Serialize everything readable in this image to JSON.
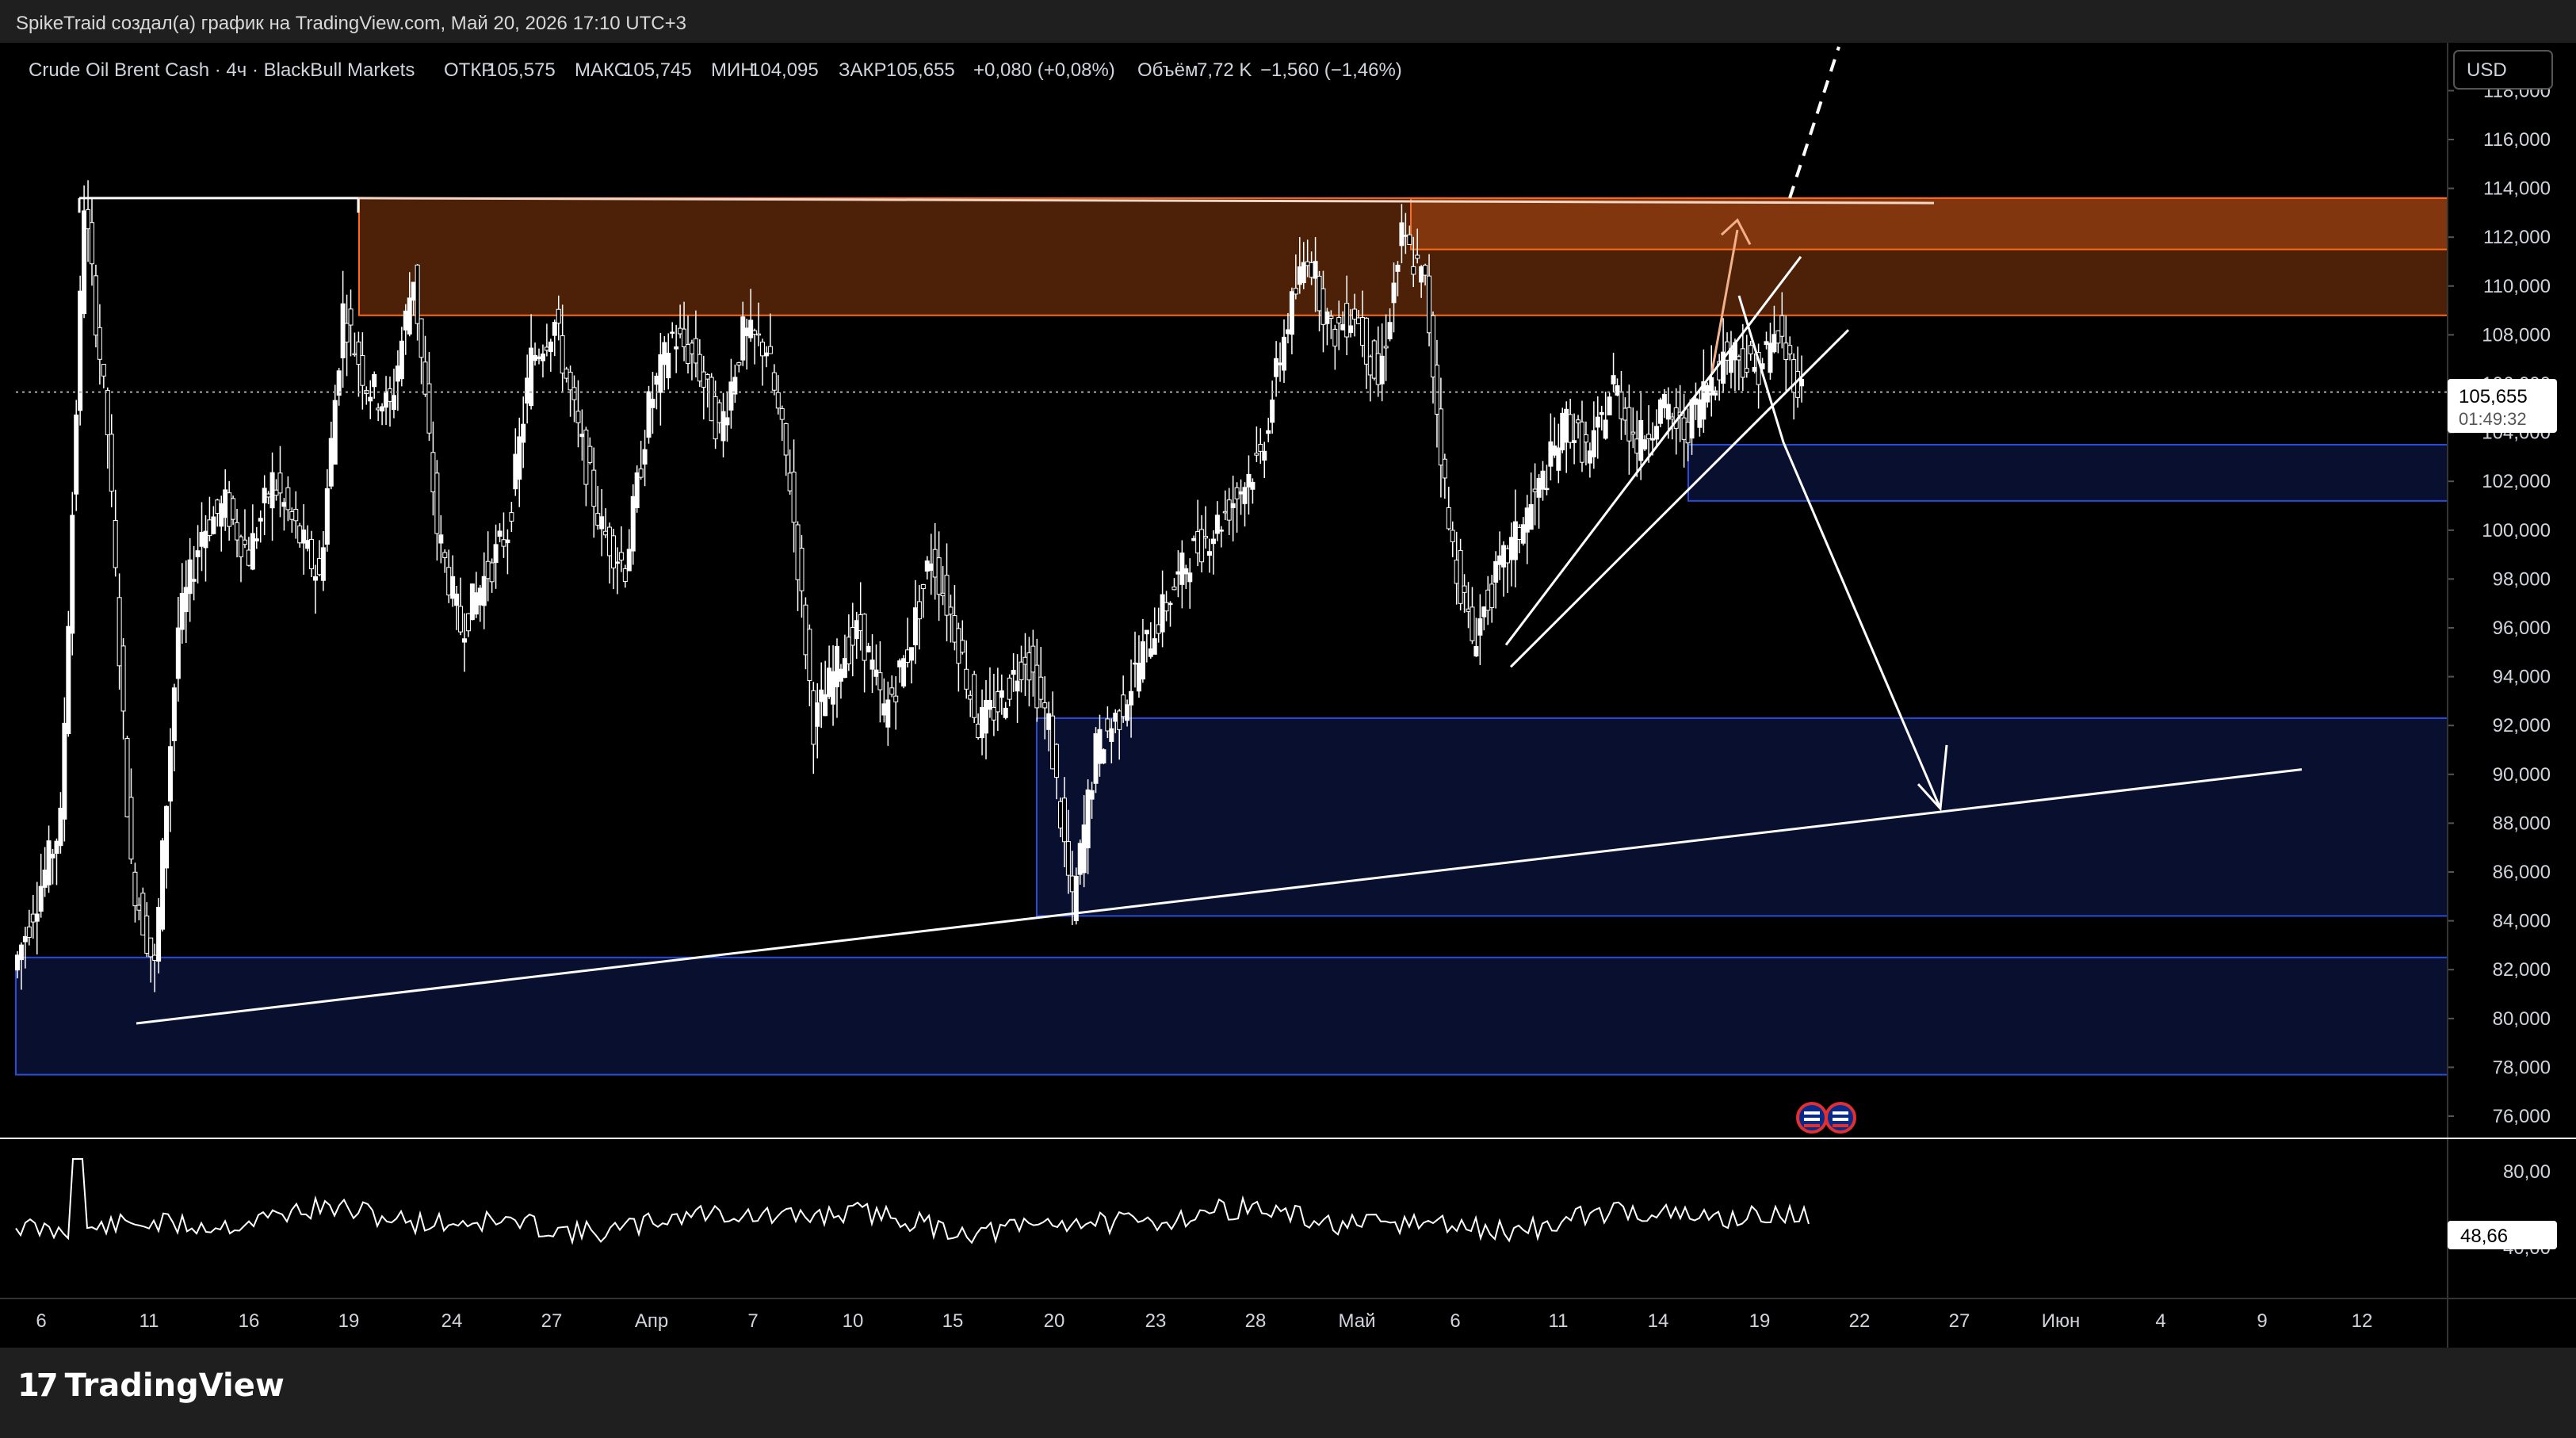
{
  "header": {
    "credit": "SpikeTraid создал(а) график на TradingView.com, Май 20, 2026 17:10 UTC+3"
  },
  "legend": {
    "symbol": "Crude Oil Brent Cash · 4ч · BlackBull Markets",
    "open_label": "ОТКР",
    "open": "105,575",
    "high_label": "МАКС",
    "high": "105,745",
    "low_label": "МИН",
    "low": "104,095",
    "close_label": "ЗАКР",
    "close": "105,655",
    "change": "+0,080 (+0,08%)",
    "volume_label": "Объём",
    "volume": "7,72 K",
    "volume_change": "−1,560 (−1,46%)"
  },
  "currency_button": "USD",
  "price_badge": {
    "price": "105,655",
    "countdown": "01:49:32"
  },
  "rsi_badge": "48,66",
  "brand": "TradingView",
  "colors": {
    "background": "#000000",
    "resistance_zone": "#ff6a1a",
    "support_zone": "#2a4bd7",
    "lines": "#ffffff",
    "arrow_up": "#f2b08c",
    "text": "#d1d4dc"
  },
  "chart_data": {
    "type": "candlestick",
    "symbol": "Crude Oil Brent Cash",
    "timeframe": "4ч",
    "y_axis": {
      "side": "right",
      "ticks": [
        76000,
        78000,
        80000,
        82000,
        84000,
        86000,
        88000,
        90000,
        92000,
        94000,
        96000,
        98000,
        100000,
        102000,
        104000,
        106000,
        108000,
        110000,
        112000,
        114000,
        116000,
        118000
      ],
      "tick_labels": [
        "76,000",
        "78,000",
        "80,000",
        "82,000",
        "84,000",
        "86,000",
        "88,000",
        "90,000",
        "92,000",
        "94,000",
        "96,000",
        "98,000",
        "100,000",
        "102,000",
        "104,000",
        "106,000",
        "108,000",
        "110,000",
        "112,000",
        "114,000",
        "116,000",
        "118,000"
      ]
    },
    "x_axis": {
      "ticks": [
        "6",
        "11",
        "16",
        "19",
        "24",
        "27",
        "Апр",
        "7",
        "10",
        "15",
        "20",
        "23",
        "28",
        "Май",
        "6",
        "11",
        "14",
        "19",
        "22",
        "27",
        "Июн",
        "4",
        "9",
        "12"
      ]
    },
    "price_path": [
      [
        "6",
        82.0
      ],
      [
        "6",
        85.0
      ],
      [
        "7",
        88.0
      ],
      [
        "8",
        113.5
      ],
      [
        "9",
        104.0
      ],
      [
        "10",
        86.0
      ],
      [
        "11",
        82.0
      ],
      [
        "12",
        96.0
      ],
      [
        "13",
        100.0
      ],
      [
        "14",
        101.0
      ],
      [
        "15",
        99.0
      ],
      [
        "16",
        102.0
      ],
      [
        "17",
        100.0
      ],
      [
        "18",
        98.0
      ],
      [
        "19",
        109.0
      ],
      [
        "20",
        106.0
      ],
      [
        "21",
        105.0
      ],
      [
        "22",
        110.5
      ],
      [
        "23",
        100.0
      ],
      [
        "24",
        96.0
      ],
      [
        "25",
        98.0
      ],
      [
        "26",
        100.0
      ],
      [
        "27",
        107.0
      ],
      [
        "28",
        108.5
      ],
      [
        "29",
        104.0
      ],
      [
        "30",
        100.0
      ],
      [
        "31",
        98.5
      ],
      [
        "Апр",
        105.0
      ],
      [
        "2",
        108.0
      ],
      [
        "3",
        107.0
      ],
      [
        "4",
        104.0
      ],
      [
        "5",
        108.0
      ],
      [
        "6",
        107.5
      ],
      [
        "7",
        102.0
      ],
      [
        "8",
        92.0
      ],
      [
        "9",
        94.5
      ],
      [
        "10",
        96.0
      ],
      [
        "11",
        92.5
      ],
      [
        "12",
        95.0
      ],
      [
        "13",
        99.0
      ],
      [
        "14",
        96.0
      ],
      [
        "15",
        92.0
      ],
      [
        "16",
        93.0
      ],
      [
        "17",
        95.0
      ],
      [
        "18",
        92.0
      ],
      [
        "19",
        84.5
      ],
      [
        "20",
        91.0
      ],
      [
        "21",
        92.5
      ],
      [
        "22",
        95.0
      ],
      [
        "23",
        97.0
      ],
      [
        "24",
        99.0
      ],
      [
        "25",
        100.0
      ],
      [
        "26",
        101.5
      ],
      [
        "27",
        103.0
      ],
      [
        "28",
        108.0
      ],
      [
        "29",
        111.5
      ],
      [
        "30",
        108.0
      ],
      [
        "Май",
        109.0
      ],
      [
        "2",
        106.0
      ],
      [
        "3",
        112.0
      ],
      [
        "4",
        110.0
      ],
      [
        "5",
        100.0
      ],
      [
        "6",
        95.5
      ],
      [
        "7",
        98.0
      ],
      [
        "8",
        100.0
      ],
      [
        "9",
        102.0
      ],
      [
        "10",
        104.5
      ],
      [
        "11",
        103.0
      ],
      [
        "12",
        106.0
      ],
      [
        "13",
        103.5
      ],
      [
        "14",
        105.0
      ],
      [
        "15",
        104.0
      ],
      [
        "16",
        106.0
      ],
      [
        "17",
        107.5
      ],
      [
        "18",
        106.5
      ],
      [
        "19",
        108.0
      ],
      [
        "20",
        105.655
      ]
    ],
    "zones": [
      {
        "type": "resistance",
        "from": "19",
        "to": "right-edge",
        "bottom": 108.8,
        "top": 113.6
      },
      {
        "type": "resistance",
        "from": "Май",
        "to": "right-edge",
        "bottom": 111.5,
        "top": 113.6
      },
      {
        "type": "support",
        "from": "Май",
        "to": "right-edge",
        "bottom": 101.2,
        "top": 103.5
      },
      {
        "type": "support",
        "from": "19",
        "to": "right-edge",
        "bottom": 84.2,
        "top": 92.3
      },
      {
        "type": "support",
        "from": "6",
        "to": "right-edge",
        "bottom": 77.7,
        "top": 82.5
      }
    ],
    "indicator": {
      "name": "RSI",
      "value": 48.66,
      "ticks": [
        "80,00",
        "40,00"
      ]
    }
  }
}
